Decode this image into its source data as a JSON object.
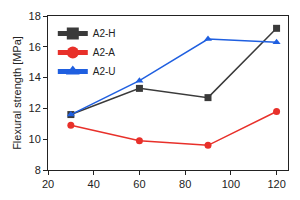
{
  "chart_data": {
    "type": "line",
    "y_label": "Flexural strength [MPa]",
    "x": [
      30,
      60,
      90,
      120
    ],
    "series": [
      {
        "name": "A2-H",
        "color": "#3a3a3a",
        "marker": "square",
        "line_style": "solid",
        "values": [
          11.6,
          13.3,
          12.7,
          17.2
        ]
      },
      {
        "name": "A2-A",
        "color": "#e8302a",
        "marker": "circle",
        "line_style": "solid",
        "values": [
          10.9,
          9.9,
          9.6,
          11.8
        ]
      },
      {
        "name": "A2-U",
        "color": "#1f5fe0",
        "marker": "triangle-up",
        "line_style": "solid",
        "values": [
          11.6,
          13.8,
          16.5,
          16.3
        ]
      }
    ],
    "xlim": [
      20,
      125
    ],
    "xticks": [
      20,
      40,
      60,
      80,
      100,
      120
    ],
    "ylim": [
      8,
      18
    ],
    "yticks": [
      8,
      10,
      12,
      14,
      16,
      18
    ],
    "grid": false,
    "legend": "top left"
  }
}
